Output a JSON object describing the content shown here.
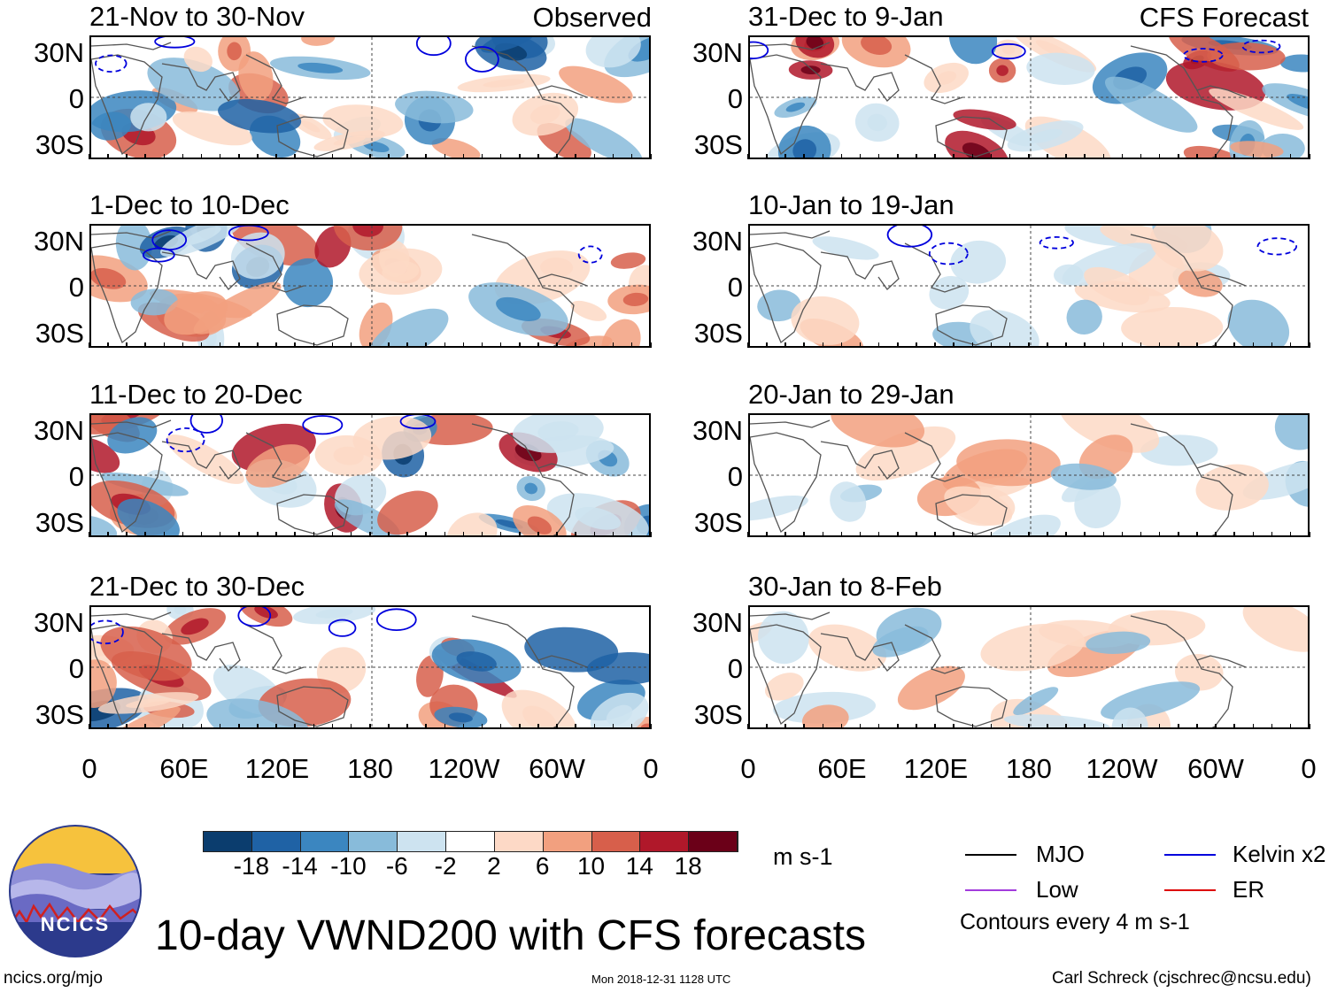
{
  "header": {
    "left_tag": "Observed",
    "right_tag": "CFS Forecast"
  },
  "panels_left": [
    {
      "title": "21-Nov to 30-Nov"
    },
    {
      "title": "1-Dec to 10-Dec"
    },
    {
      "title": "11-Dec to 20-Dec"
    },
    {
      "title": "21-Dec to 30-Dec"
    }
  ],
  "panels_right": [
    {
      "title": "31-Dec to 9-Jan"
    },
    {
      "title": "10-Jan to 19-Jan"
    },
    {
      "title": "20-Jan to 29-Jan"
    },
    {
      "title": "30-Jan to 8-Feb"
    }
  ],
  "y_ticks": [
    "30N",
    "0",
    "30S"
  ],
  "x_ticks": [
    "0",
    "60E",
    "120E",
    "180",
    "120W",
    "60W",
    "0"
  ],
  "colorbar": {
    "labels": [
      "-18",
      "-14",
      "-10",
      "-6",
      "-2",
      "2",
      "6",
      "10",
      "14",
      "18"
    ],
    "colors": [
      "#0b3d6e",
      "#1f62a5",
      "#3b86c0",
      "#88bbda",
      "#cde3f0",
      "#ffffff",
      "#fdd9c6",
      "#f2a07f",
      "#d75f4b",
      "#b0182a",
      "#6b0018"
    ],
    "units": "m s-1"
  },
  "legend": {
    "items": [
      {
        "label": "MJO",
        "color": "#000000"
      },
      {
        "label": "Kelvin x2",
        "color": "#0000dd"
      },
      {
        "label": "Low",
        "color": "#a23bdc"
      },
      {
        "label": "ER",
        "color": "#dd0000"
      }
    ],
    "note": "Contours every 4 m s-1"
  },
  "logo": {
    "text": "NCICS"
  },
  "footer": {
    "title": "10-day VWND200 with CFS forecasts",
    "url": "ncics.org/mjo",
    "timestamp": "Mon 2018-12-31 1128 UTC",
    "credit": "Carl Schreck (cjschrec@ncsu.edu)"
  }
}
